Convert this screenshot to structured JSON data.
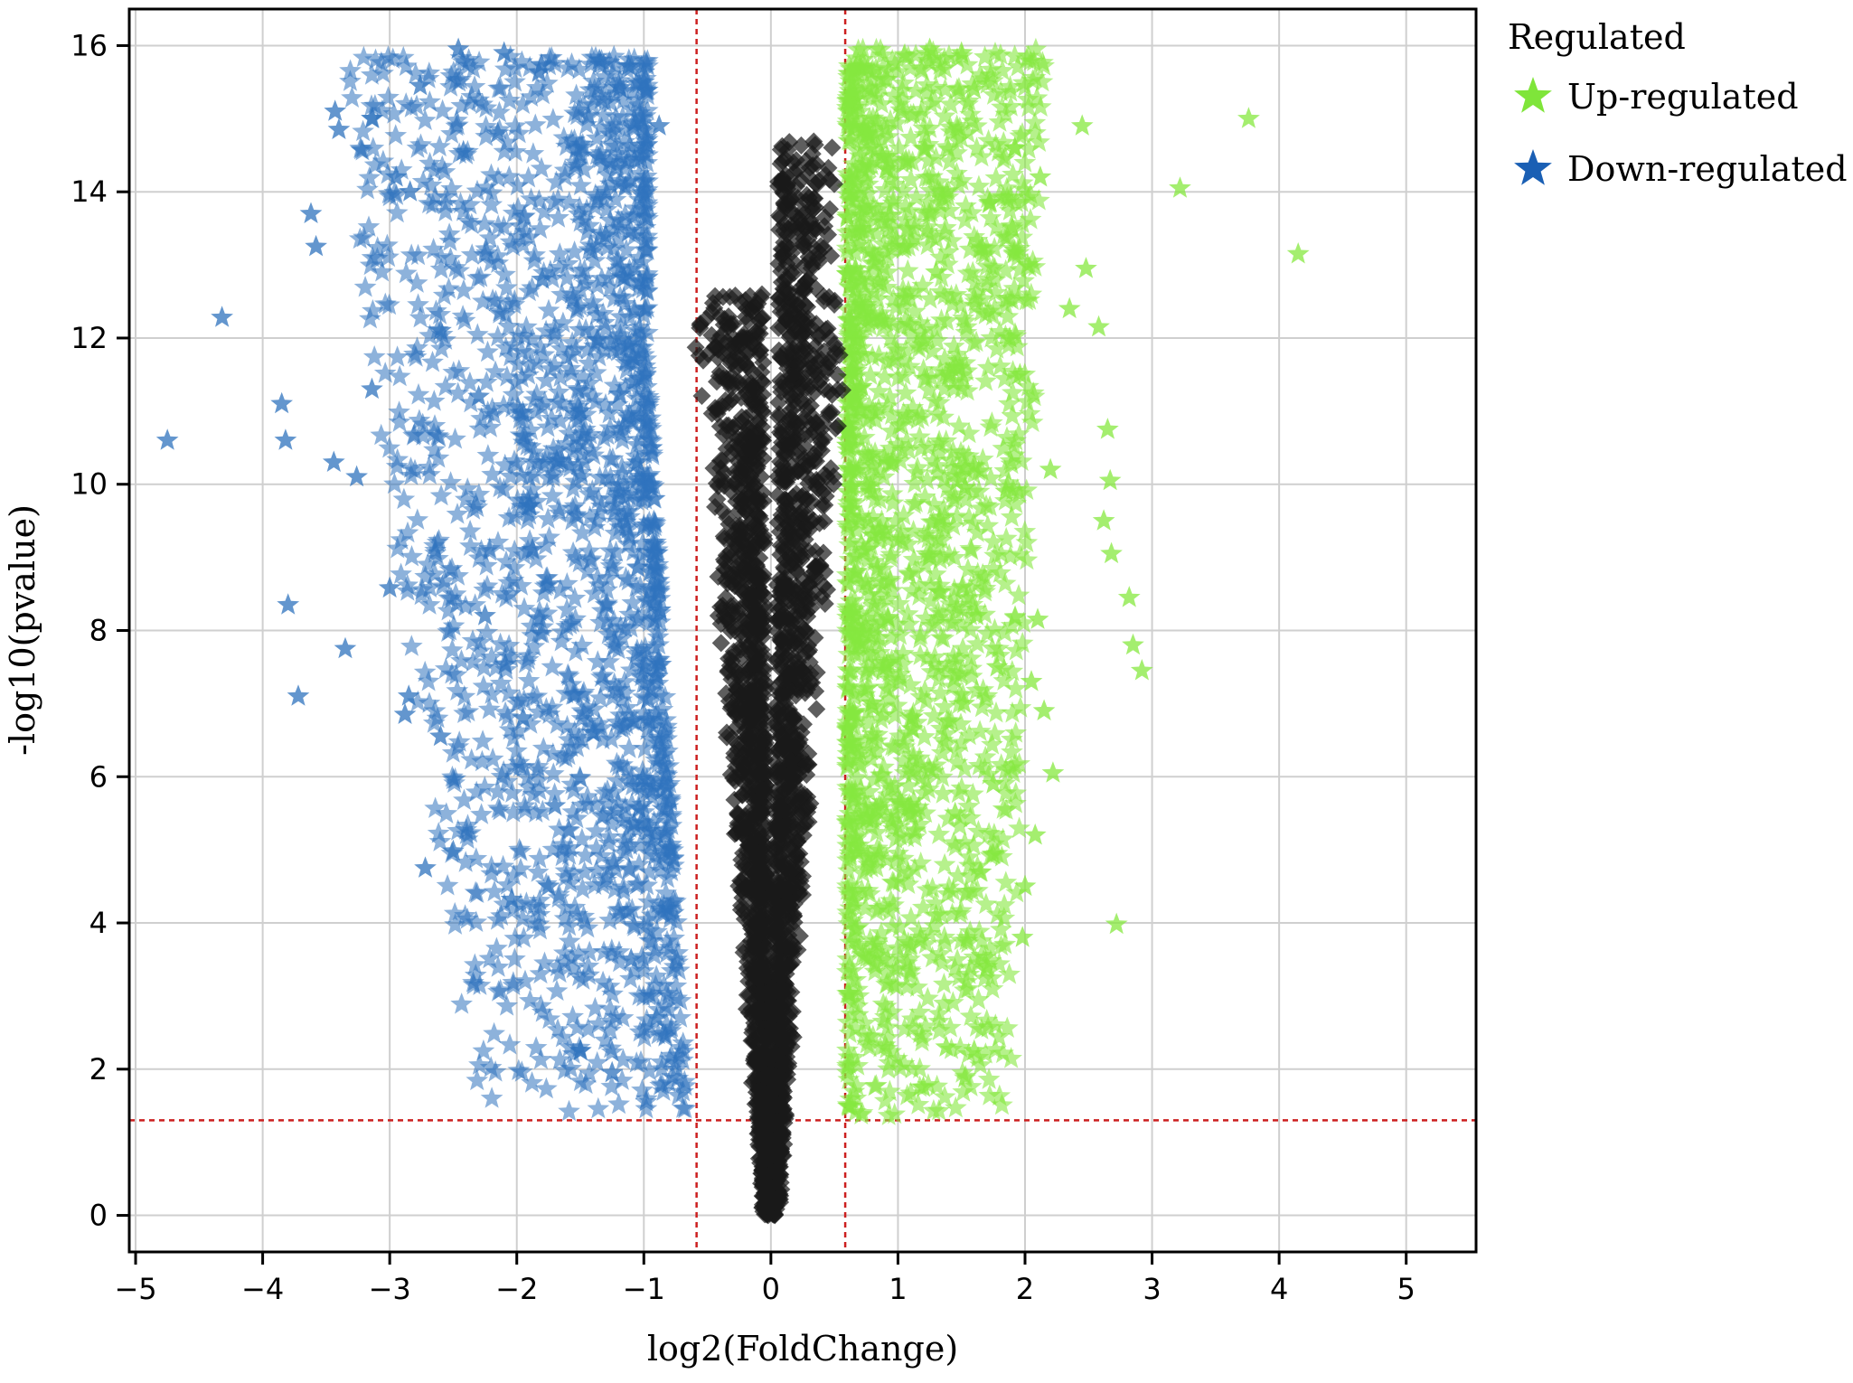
{
  "chart_data": {
    "type": "scatter",
    "title": "",
    "xlabel": "log2(FoldChange)",
    "ylabel": "-log10(pvalue)",
    "xlim": [
      -5.05,
      5.55
    ],
    "ylim": [
      -0.5,
      16.5
    ],
    "xticks": [
      -5,
      -4,
      -3,
      -2,
      -1,
      0,
      1,
      2,
      3,
      4,
      5
    ],
    "yticks": [
      0,
      2,
      4,
      6,
      8,
      10,
      12,
      14,
      16
    ],
    "xtick_labels": [
      "−5",
      "−4",
      "−3",
      "−2",
      "−1",
      "0",
      "1",
      "2",
      "3",
      "4",
      "5"
    ],
    "ytick_labels": [
      "0",
      "2",
      "4",
      "6",
      "8",
      "10",
      "12",
      "14",
      "16"
    ],
    "grid": true,
    "thresholds": {
      "log2fc": [
        -0.585,
        0.585
      ],
      "neg_log10_p": 1.3
    },
    "legend": {
      "title": "Regulated",
      "position": "outside-right",
      "entries": [
        {
          "label": "Up-regulated",
          "color": "#7fe53a",
          "marker": "star"
        },
        {
          "label": "Down-regulated",
          "color": "#1a5fb4",
          "marker": "star"
        }
      ]
    },
    "colors": {
      "up": "#86e83f",
      "down": "#2f73bd",
      "nonsig": "#1a1a1a",
      "threshold": "#cc1f1f"
    },
    "series": [
      {
        "name": "Up-regulated",
        "marker": "star",
        "points": [
          [
            3.76,
            15.0
          ],
          [
            4.15,
            13.15
          ],
          [
            3.22,
            14.05
          ],
          [
            2.45,
            14.9
          ],
          [
            2.48,
            12.95
          ],
          [
            2.58,
            12.15
          ],
          [
            2.35,
            12.4
          ],
          [
            2.65,
            10.75
          ],
          [
            2.67,
            10.05
          ],
          [
            2.62,
            9.5
          ],
          [
            2.68,
            9.05
          ],
          [
            2.82,
            8.45
          ],
          [
            2.85,
            7.8
          ],
          [
            2.92,
            7.45
          ],
          [
            2.72,
            3.98
          ],
          [
            2.2,
            10.2
          ],
          [
            2.1,
            8.15
          ],
          [
            2.05,
            7.3
          ],
          [
            2.15,
            6.9
          ],
          [
            2.22,
            6.05
          ],
          [
            2.08,
            5.2
          ],
          [
            2.0,
            4.5
          ],
          [
            1.92,
            14.6
          ],
          [
            1.9,
            13.5
          ],
          [
            1.96,
            11.5
          ],
          [
            1.85,
            9.9
          ],
          [
            1.78,
            7.5
          ],
          [
            1.75,
            5.9
          ],
          [
            1.7,
            3.4
          ],
          [
            1.6,
            2.25
          ],
          [
            1.38,
            2.3
          ],
          [
            1.2,
            1.75
          ],
          [
            1.3,
            4.1
          ],
          [
            1.45,
            5.5
          ],
          [
            1.5,
            15.9
          ],
          [
            1.25,
            15.95
          ],
          [
            1.6,
            15.4
          ],
          [
            1.3,
            12.9
          ],
          [
            1.5,
            10.1
          ],
          [
            1.62,
            8.2
          ],
          [
            2.12,
            14.2
          ],
          [
            1.88,
            12.0
          ],
          [
            2.02,
            13.0
          ],
          [
            1.52,
            7.0
          ],
          [
            1.98,
            3.8
          ]
        ]
      },
      {
        "name": "Down-regulated",
        "marker": "star",
        "points": [
          [
            -4.75,
            10.6
          ],
          [
            -4.32,
            12.28
          ],
          [
            -3.85,
            11.1
          ],
          [
            -3.82,
            10.6
          ],
          [
            -3.8,
            8.35
          ],
          [
            -3.72,
            7.1
          ],
          [
            -3.58,
            13.25
          ],
          [
            -3.62,
            13.7
          ],
          [
            -3.43,
            15.1
          ],
          [
            -3.4,
            14.85
          ],
          [
            -3.14,
            15.0
          ],
          [
            -3.35,
            7.75
          ],
          [
            -3.44,
            10.3
          ],
          [
            -3.26,
            10.1
          ],
          [
            -3.14,
            11.3
          ],
          [
            -2.95,
            14.2
          ],
          [
            -2.84,
            14.0
          ],
          [
            -2.76,
            15.45
          ],
          [
            -2.85,
            7.1
          ],
          [
            -2.88,
            6.85
          ],
          [
            -2.6,
            6.55
          ],
          [
            -2.5,
            4.98
          ],
          [
            -2.72,
            4.75
          ],
          [
            -3.0,
            8.58
          ],
          [
            -2.46,
            15.95
          ],
          [
            -2.1,
            15.9
          ],
          [
            -2.15,
            14.8
          ],
          [
            -2.42,
            14.55
          ],
          [
            -1.95,
            6.8
          ],
          [
            -2.04,
            4.32
          ],
          [
            -1.75,
            4.5
          ],
          [
            -1.5,
            2.25
          ],
          [
            -1.25,
            1.95
          ],
          [
            -1.35,
            15.8
          ],
          [
            -1.12,
            15.72
          ],
          [
            -1.0,
            15.5
          ],
          [
            -0.88,
            14.9
          ],
          [
            -1.5,
            11.0
          ],
          [
            -1.9,
            9.7
          ],
          [
            -2.25,
            8.2
          ],
          [
            -2.6,
            12.1
          ],
          [
            -2.3,
            11.2
          ],
          [
            -1.8,
            12.8
          ],
          [
            -1.3,
            13.4
          ],
          [
            -1.05,
            10.3
          ],
          [
            -0.95,
            8.8
          ],
          [
            -1.4,
            6.6
          ],
          [
            -1.7,
            5.6
          ],
          [
            -1.1,
            3.5
          ],
          [
            -0.9,
            2.7
          ]
        ]
      }
    ]
  }
}
